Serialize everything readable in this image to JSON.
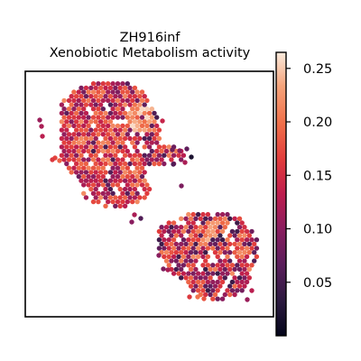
{
  "chart_data": {
    "type": "scatter",
    "title_line1": "ZH916inf",
    "title_line2": "Xenobiotic Metabolism activity",
    "xlabel": "",
    "ylabel": "",
    "axes_ticks_visible": false,
    "colorbar": {
      "colormap": "rocket",
      "vmin": 0.0,
      "vmax": 0.265,
      "ticks": [
        0.05,
        0.1,
        0.15,
        0.2,
        0.25
      ],
      "tick_labels": [
        "0.05",
        "0.10",
        "0.15",
        "0.20",
        "0.25"
      ]
    },
    "regions": [
      {
        "name": "upper-left tissue section",
        "value_range": [
          0.05,
          0.26
        ],
        "typical_value": 0.17
      },
      {
        "name": "lower-right tissue section",
        "value_range": [
          0.04,
          0.26
        ],
        "typical_value": 0.15
      }
    ]
  }
}
